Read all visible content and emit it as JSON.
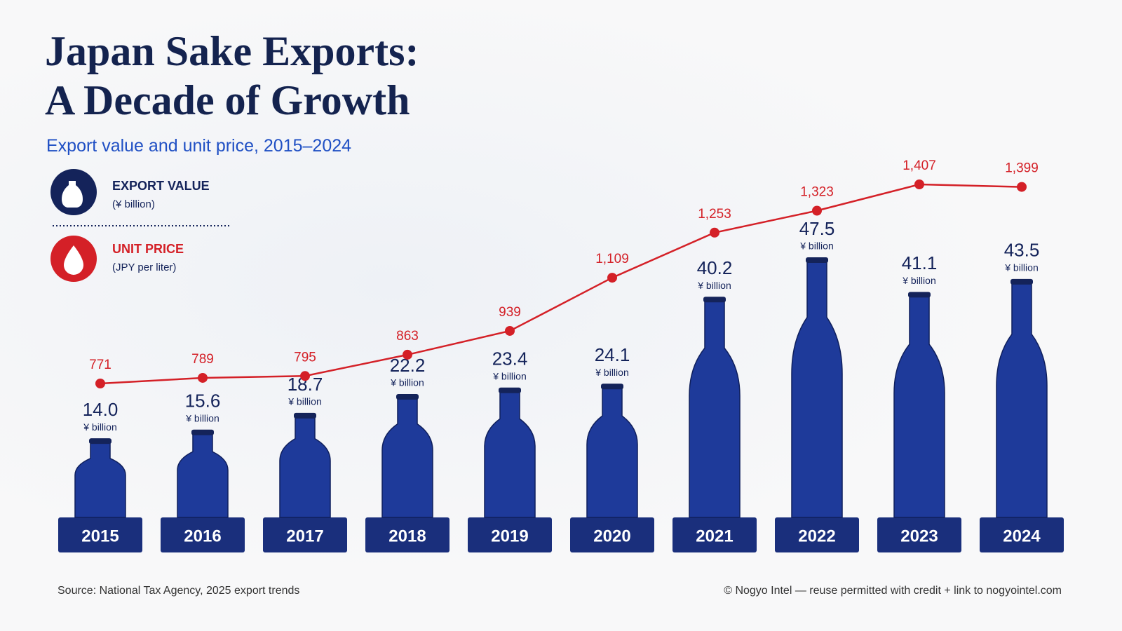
{
  "chart_data": {
    "type": "bar",
    "title": "Japan Sake Exports:\nA Decade of Growth",
    "subtitle": "Export value and unit price, 2015–2024",
    "categories": [
      "2015",
      "2016",
      "2017",
      "2018",
      "2019",
      "2020",
      "2021",
      "2022",
      "2023",
      "2024"
    ],
    "series": [
      {
        "name": "EXPORT VALUE",
        "unit": "(¥ billion)",
        "value_unit": "¥ billion",
        "color": "#1e3a9a",
        "values": [
          14.0,
          15.6,
          18.7,
          22.2,
          23.4,
          24.1,
          40.2,
          47.5,
          41.1,
          43.5
        ],
        "value_labels": [
          "14.0",
          "15.6",
          "18.7",
          "22.2",
          "23.4",
          "24.1",
          "40.2",
          "47.5",
          "41.1",
          "43.5"
        ]
      },
      {
        "name": "UNIT PRICE",
        "unit": "(JPY per liter)",
        "type": "line",
        "axis": "y2",
        "color": "#d42027",
        "values": [
          771,
          789,
          795,
          863,
          939,
          1109,
          1253,
          1323,
          1407,
          1399
        ],
        "value_labels": [
          "771",
          "789",
          "795",
          "863",
          "939",
          "1,109",
          "1,253",
          "1,323",
          "1,407",
          "1,399"
        ]
      }
    ],
    "source": "Source: National Tax Agency, 2025 export trends",
    "credit": "© Nogyo Intel — reuse permitted with credit + link to nogyointel.com"
  }
}
